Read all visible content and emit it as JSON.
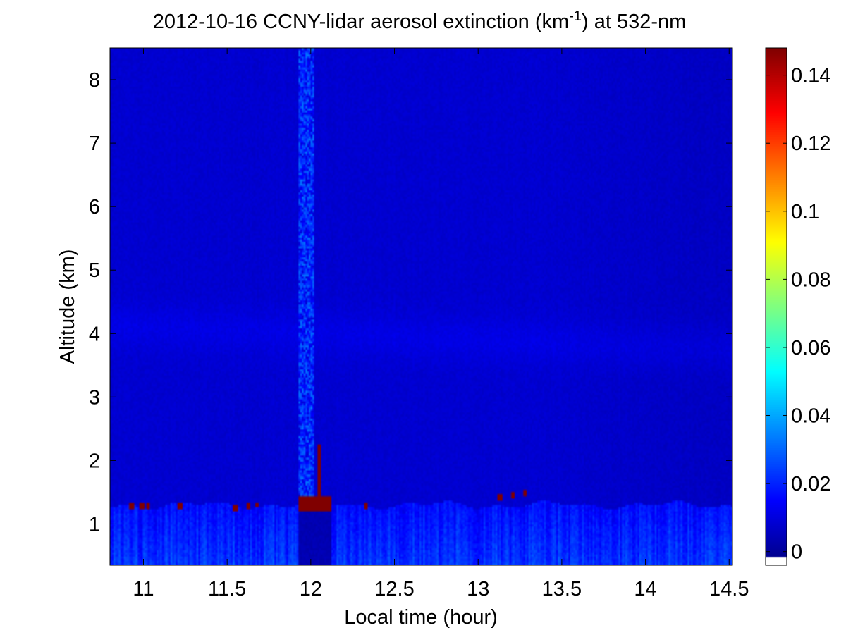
{
  "chart_data": {
    "type": "heatmap",
    "title_main": "2012-10-16 CCNY-lidar aerosol extinction (km",
    "title_sup": "-1",
    "title_tail": ") at 532-nm",
    "xlabel": "Local time (hour)",
    "ylabel": "Altitude (km)",
    "xlim": [
      10.8,
      14.52
    ],
    "ylim": [
      0.35,
      8.5
    ],
    "xticks": [
      11,
      11.5,
      12,
      12.5,
      13,
      13.5,
      14,
      14.5
    ],
    "xtick_labels": [
      "11",
      "11.5",
      "12",
      "12.5",
      "13",
      "13.5",
      "14",
      "14.5"
    ],
    "yticks": [
      1,
      2,
      3,
      4,
      5,
      6,
      7,
      8
    ],
    "ytick_labels": [
      "1",
      "2",
      "3",
      "4",
      "5",
      "6",
      "7",
      "8"
    ],
    "colormap": "jet",
    "clim": [
      -0.004,
      0.148
    ],
    "colorbar_ticks": [
      0,
      0.02,
      0.04,
      0.06,
      0.08,
      0.1,
      0.12,
      0.14
    ],
    "colorbar_labels": [
      "0",
      "0.02",
      "0.04",
      "0.06",
      "0.08",
      "0.1",
      "0.12",
      "0.14"
    ],
    "colorbar_under_color": "#ffffff",
    "grid": false,
    "features": {
      "boundary_layer_top_km": 1.3,
      "near_surface_extinction": 0.022,
      "free_troposphere_extinction": 0.008,
      "elevated_layer_km": 4.0,
      "elevated_layer_extinction": 0.011,
      "cloud_time_range": [
        11.93,
        12.12
      ],
      "cloud_base_km": 1.2,
      "cloud_top_km": 1.45,
      "cloud_extinction": 0.148,
      "cloud_spike_time": 12.05,
      "cloud_spike_top_km": 2.25,
      "noisy_column_time_range": [
        11.93,
        12.02
      ],
      "noisy_column_extinction": 0.025,
      "small_clouds": [
        {
          "time": 10.93,
          "altitude": 1.27
        },
        {
          "time": 10.99,
          "altitude": 1.29
        },
        {
          "time": 11.03,
          "altitude": 1.27
        },
        {
          "time": 11.22,
          "altitude": 1.27
        },
        {
          "time": 11.55,
          "altitude": 1.26
        },
        {
          "time": 11.63,
          "altitude": 1.27
        },
        {
          "time": 11.68,
          "altitude": 1.3
        },
        {
          "time": 12.33,
          "altitude": 1.28
        },
        {
          "time": 13.13,
          "altitude": 1.43
        },
        {
          "time": 13.21,
          "altitude": 1.44
        },
        {
          "time": 13.28,
          "altitude": 1.49
        }
      ]
    }
  },
  "colors": {
    "background": "#ffffff",
    "axis": "#000000"
  }
}
